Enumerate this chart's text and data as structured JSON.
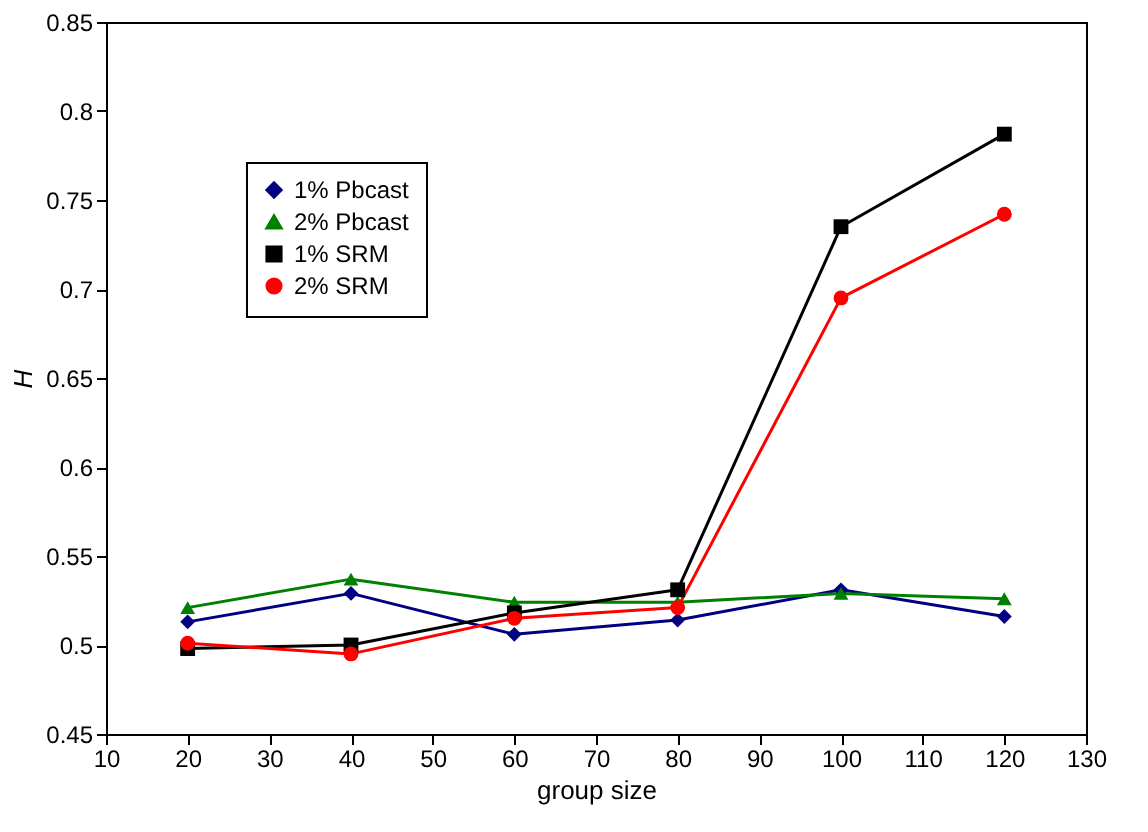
{
  "chart_data": {
    "type": "line",
    "xlabel": "group size",
    "ylabel": "H",
    "x": [
      20,
      40,
      60,
      80,
      100,
      120
    ],
    "xlim": [
      10,
      130
    ],
    "xticks": [
      10,
      20,
      30,
      40,
      50,
      60,
      70,
      80,
      90,
      100,
      110,
      120,
      130
    ],
    "ylim": [
      0.45,
      0.85
    ],
    "yticks": [
      0.45,
      0.5,
      0.55,
      0.6,
      0.65,
      0.7,
      0.75,
      0.8,
      0.85
    ],
    "grid": false,
    "legend": "top left",
    "line_style": "solid",
    "series": [
      {
        "name": "1% Pbcast",
        "color": "#000080",
        "marker": "diamond",
        "values": [
          0.513,
          0.529,
          0.506,
          0.514,
          0.531,
          0.516
        ]
      },
      {
        "name": "2% Pbcast",
        "color": "#008000",
        "marker": "triangle",
        "values": [
          0.521,
          0.537,
          0.524,
          0.524,
          0.529,
          0.526
        ]
      },
      {
        "name": "1% SRM",
        "color": "#000000",
        "marker": "square",
        "values": [
          0.498,
          0.5,
          0.518,
          0.531,
          0.735,
          0.787
        ]
      },
      {
        "name": "2% SRM",
        "color": "#ff0000",
        "marker": "circle",
        "values": [
          0.501,
          0.495,
          0.515,
          0.521,
          0.695,
          0.742
        ]
      }
    ]
  }
}
